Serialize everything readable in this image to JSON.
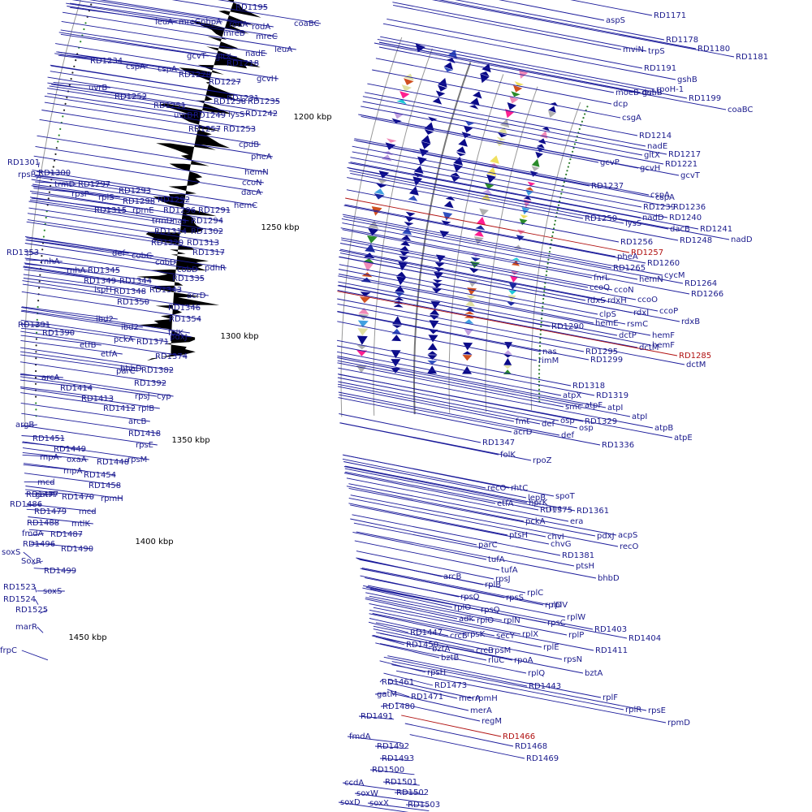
{
  "colors": {
    "label": "#1a1a8c",
    "highlight": "#b01010",
    "skew": "#000000",
    "circle": "#9a9a9a",
    "feature_main": "#0a0a88"
  },
  "scale_marks": [
    {
      "text": "1200 kbp"
    },
    {
      "text": "1250 kbp"
    },
    {
      "text": "1300 kbp"
    },
    {
      "text": "1350 kbp"
    },
    {
      "text": "1400 kbp"
    },
    {
      "text": "1450 kbp"
    }
  ],
  "labels": [
    {
      "t": "RD1195"
    },
    {
      "t": "coaBC"
    },
    {
      "t": "leuA"
    },
    {
      "t": "mreC"
    },
    {
      "t": "pbpA"
    },
    {
      "t": "rodA"
    },
    {
      "t": "mreB"
    },
    {
      "t": "rodA"
    },
    {
      "t": "mreC"
    },
    {
      "t": "leuA"
    },
    {
      "t": "RD1234"
    },
    {
      "t": "cspA"
    },
    {
      "t": "cspA"
    },
    {
      "t": "gcvT"
    },
    {
      "t": "gltX"
    },
    {
      "t": "nadE"
    },
    {
      "t": "RD1218"
    },
    {
      "t": "RD1228"
    },
    {
      "t": "RD1227"
    },
    {
      "t": "gcvH"
    },
    {
      "t": "uvrB"
    },
    {
      "t": "RD1252"
    },
    {
      "t": "RD1231"
    },
    {
      "t": "RD1238"
    },
    {
      "t": "RD1235"
    },
    {
      "t": "RD1251"
    },
    {
      "t": "uvrB"
    },
    {
      "t": "RD1249"
    },
    {
      "t": "lysS"
    },
    {
      "t": "RD1242"
    },
    {
      "t": "RD1257"
    },
    {
      "t": "RD1253"
    },
    {
      "t": "cpdB"
    },
    {
      "t": "pheA"
    },
    {
      "t": "RD1301"
    },
    {
      "t": "rpsP"
    },
    {
      "t": "RD1300"
    },
    {
      "t": "trmD"
    },
    {
      "t": "RD1297"
    },
    {
      "t": "hemN"
    },
    {
      "t": "ccoN"
    },
    {
      "t": "RD1293"
    },
    {
      "t": "rpsP"
    },
    {
      "t": "rplS"
    },
    {
      "t": "RD1298"
    },
    {
      "t": "RD1292"
    },
    {
      "t": "dacA"
    },
    {
      "t": "RD1315"
    },
    {
      "t": "rpmE"
    },
    {
      "t": "RD1296"
    },
    {
      "t": "RD1291"
    },
    {
      "t": "hemC"
    },
    {
      "t": "trmD"
    },
    {
      "t": "nas"
    },
    {
      "t": "RD1294"
    },
    {
      "t": "RD1314"
    },
    {
      "t": "RD1302"
    },
    {
      "t": "RD1320"
    },
    {
      "t": "RD1313"
    },
    {
      "t": "RD1353"
    },
    {
      "t": "def"
    },
    {
      "t": "cobC"
    },
    {
      "t": "RD1317"
    },
    {
      "t": "rnhA"
    },
    {
      "t": "cobD"
    },
    {
      "t": "rnhA"
    },
    {
      "t": "cobD"
    },
    {
      "t": "pdhR"
    },
    {
      "t": "RD1345"
    },
    {
      "t": "RD1349"
    },
    {
      "t": "RD1344"
    },
    {
      "t": "RD1335"
    },
    {
      "t": "ispH"
    },
    {
      "t": "RD1348"
    },
    {
      "t": "RD1343"
    },
    {
      "t": "acrD"
    },
    {
      "t": "RD1350"
    },
    {
      "t": "RD1346"
    },
    {
      "t": "RD1354"
    },
    {
      "t": "RD1391"
    },
    {
      "t": "ibd2"
    },
    {
      "t": "ibd2"
    },
    {
      "t": "folK"
    },
    {
      "t": "RD1390"
    },
    {
      "t": "pckA"
    },
    {
      "t": "RD1371"
    },
    {
      "t": "pdxJ"
    },
    {
      "t": "etfB"
    },
    {
      "t": "etfA"
    },
    {
      "t": "RD1374"
    },
    {
      "t": "bhbD"
    },
    {
      "t": "parC"
    },
    {
      "t": "RD1382"
    },
    {
      "t": "arcA"
    },
    {
      "t": "RD1392"
    },
    {
      "t": "RD1414"
    },
    {
      "t": "rpsJ"
    },
    {
      "t": "cyp"
    },
    {
      "t": "RD1413"
    },
    {
      "t": "RD1412"
    },
    {
      "t": "rplB"
    },
    {
      "t": "arcB"
    },
    {
      "t": "argB"
    },
    {
      "t": "RD1418"
    },
    {
      "t": "RD1451"
    },
    {
      "t": "rpsE"
    },
    {
      "t": "RD1449"
    },
    {
      "t": "rnpA"
    },
    {
      "t": "oxaA"
    },
    {
      "t": "RD1448"
    },
    {
      "t": "rpsM"
    },
    {
      "t": "rnpA"
    },
    {
      "t": "RD1454"
    },
    {
      "t": "mcd"
    },
    {
      "t": "gatM"
    },
    {
      "t": "RD1458"
    },
    {
      "t": "RD1477"
    },
    {
      "t": "RD1470"
    },
    {
      "t": "rpmH"
    },
    {
      "t": "RD1486"
    },
    {
      "t": "RD1479"
    },
    {
      "t": "mcd"
    },
    {
      "t": "RD1488"
    },
    {
      "t": "mtlK"
    },
    {
      "t": "fmdA"
    },
    {
      "t": "RD1487"
    },
    {
      "t": "RD1496"
    },
    {
      "t": "RD1490"
    },
    {
      "t": "soxS"
    },
    {
      "t": "SoxR"
    },
    {
      "t": "RD1499"
    },
    {
      "t": "RD1523"
    },
    {
      "t": "soxS"
    },
    {
      "t": "RD1524"
    },
    {
      "t": "RD1525"
    },
    {
      "t": "marR"
    },
    {
      "t": "frpC"
    },
    {
      "t": "RD1171"
    },
    {
      "t": "aspS"
    },
    {
      "t": "RD1178"
    },
    {
      "t": "RD1180"
    },
    {
      "t": "RD1181"
    },
    {
      "t": "mviN"
    },
    {
      "t": "trpS"
    },
    {
      "t": "RD1191"
    },
    {
      "t": "gshB"
    },
    {
      "t": "gshB"
    },
    {
      "t": "rpoH-1"
    },
    {
      "t": "moeB"
    },
    {
      "t": "dut"
    },
    {
      "t": "RD1199"
    },
    {
      "t": "dcp"
    },
    {
      "t": "coaBC"
    },
    {
      "t": "csgA"
    },
    {
      "t": "RD1214"
    },
    {
      "t": "nadE"
    },
    {
      "t": "gltX"
    },
    {
      "t": "RD1217"
    },
    {
      "t": "RD1221"
    },
    {
      "t": "gcvP"
    },
    {
      "t": "gcvH"
    },
    {
      "t": "gcvT"
    },
    {
      "t": "RD1237"
    },
    {
      "t": "cspA"
    },
    {
      "t": "cspA"
    },
    {
      "t": "RD1239"
    },
    {
      "t": "RD1236"
    },
    {
      "t": "RD1250"
    },
    {
      "t": "lysS"
    },
    {
      "t": "nadD"
    },
    {
      "t": "RD1240"
    },
    {
      "t": "dacB"
    },
    {
      "t": "RD1241"
    },
    {
      "t": "RD1248"
    },
    {
      "t": "nadD"
    },
    {
      "t": "RD1256"
    },
    {
      "t": "RD1257",
      "red": true
    },
    {
      "t": "pheA"
    },
    {
      "t": "RD1260"
    },
    {
      "t": "RD1265"
    },
    {
      "t": "cycM"
    },
    {
      "t": "fnrL"
    },
    {
      "t": "hemN"
    },
    {
      "t": "RD1264"
    },
    {
      "t": "ccoQ"
    },
    {
      "t": "ccoN"
    },
    {
      "t": "RD1266"
    },
    {
      "t": "rdxS"
    },
    {
      "t": "rdxH"
    },
    {
      "t": "ccoO"
    },
    {
      "t": "clpS"
    },
    {
      "t": "rdxI"
    },
    {
      "t": "ccoP"
    },
    {
      "t": "rsmC"
    },
    {
      "t": "rdxB"
    },
    {
      "t": "RD1290"
    },
    {
      "t": "hemE"
    },
    {
      "t": "dctP"
    },
    {
      "t": "hemF"
    },
    {
      "t": "hemF"
    },
    {
      "t": "dctM"
    },
    {
      "t": "RD1285",
      "red": true
    },
    {
      "t": "nas"
    },
    {
      "t": "RD1295"
    },
    {
      "t": "rimM"
    },
    {
      "t": "RD1299"
    },
    {
      "t": "dctM"
    },
    {
      "t": "RD1318"
    },
    {
      "t": "atpX"
    },
    {
      "t": "RD1319"
    },
    {
      "t": "smc"
    },
    {
      "t": "atpF"
    },
    {
      "t": "atpI"
    },
    {
      "t": "atpI"
    },
    {
      "t": "fmt"
    },
    {
      "t": "def"
    },
    {
      "t": "osp"
    },
    {
      "t": "RD1329"
    },
    {
      "t": "acrD"
    },
    {
      "t": "def"
    },
    {
      "t": "osp"
    },
    {
      "t": "atpB"
    },
    {
      "t": "RD1336"
    },
    {
      "t": "atpE"
    },
    {
      "t": "RD1347"
    },
    {
      "t": "folK"
    },
    {
      "t": "rpoZ"
    },
    {
      "t": "recO"
    },
    {
      "t": "rhtC"
    },
    {
      "t": "lepB"
    },
    {
      "t": "spoT"
    },
    {
      "t": "RD1375"
    },
    {
      "t": "rnc"
    },
    {
      "t": "RD1361"
    },
    {
      "t": "era"
    },
    {
      "t": "etfA"
    },
    {
      "t": "hprK"
    },
    {
      "t": "pckA"
    },
    {
      "t": "pdxJ"
    },
    {
      "t": "ptsH"
    },
    {
      "t": "chvI"
    },
    {
      "t": "acpS"
    },
    {
      "t": "parC"
    },
    {
      "t": "chvG"
    },
    {
      "t": "recO"
    },
    {
      "t": "RD1381"
    },
    {
      "t": "ptsH"
    },
    {
      "t": "tufA"
    },
    {
      "t": "tufA"
    },
    {
      "t": "bhbD"
    },
    {
      "t": "arcB"
    },
    {
      "t": "rplB"
    },
    {
      "t": "rpsJ"
    },
    {
      "t": "rplC"
    },
    {
      "t": "rpsS"
    },
    {
      "t": "rplD"
    },
    {
      "t": "rpsQ"
    },
    {
      "t": "rplO"
    },
    {
      "t": "rpsQ"
    },
    {
      "t": "rplV"
    },
    {
      "t": "rplW"
    },
    {
      "t": "adk"
    },
    {
      "t": "rplO"
    },
    {
      "t": "rplN"
    },
    {
      "t": "rpsC"
    },
    {
      "t": "RD1403"
    },
    {
      "t": "RD1447"
    },
    {
      "t": "crcB"
    },
    {
      "t": "rpsK"
    },
    {
      "t": "secY"
    },
    {
      "t": "rplX"
    },
    {
      "t": "rplP"
    },
    {
      "t": "RD1404"
    },
    {
      "t": "RD1450"
    },
    {
      "t": "bztA"
    },
    {
      "t": "crcB"
    },
    {
      "t": "rpsM"
    },
    {
      "t": "rplE"
    },
    {
      "t": "RD1411"
    },
    {
      "t": "bztB"
    },
    {
      "t": "rluC"
    },
    {
      "t": "rpoA"
    },
    {
      "t": "rpsN"
    },
    {
      "t": "bztA"
    },
    {
      "t": "rplQ"
    },
    {
      "t": "rpsH"
    },
    {
      "t": "RD1461"
    },
    {
      "t": "RD1443"
    },
    {
      "t": "RD1473"
    },
    {
      "t": "rpmH"
    },
    {
      "t": "rplF"
    },
    {
      "t": "gatM"
    },
    {
      "t": "RD1471"
    },
    {
      "t": "merA"
    },
    {
      "t": "rplR"
    },
    {
      "t": "RD1480"
    },
    {
      "t": "merA"
    },
    {
      "t": "rpsE"
    },
    {
      "t": "RD1491"
    },
    {
      "t": "regM"
    },
    {
      "t": "rpmD"
    },
    {
      "t": "fmdA"
    },
    {
      "t": "RD1466",
      "red": true
    },
    {
      "t": "RD1492"
    },
    {
      "t": "RD1468"
    },
    {
      "t": "RD1493"
    },
    {
      "t": "RD1469"
    },
    {
      "t": "RD1500"
    },
    {
      "t": "ccdA"
    },
    {
      "t": "RD1501"
    },
    {
      "t": "soxW"
    },
    {
      "t": "RD1502"
    },
    {
      "t": "soxD"
    },
    {
      "t": "soxX"
    },
    {
      "t": "RD1503"
    }
  ]
}
